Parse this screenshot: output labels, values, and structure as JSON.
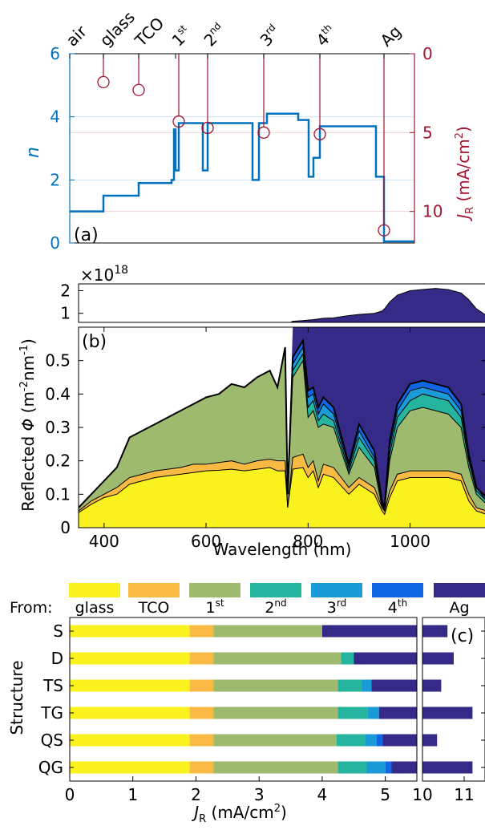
{
  "colors": {
    "blue": "#0072BD",
    "red": "#A2142F",
    "glass": "#F9F21E",
    "TCO": "#F8BA42",
    "first": "#9DBA6E",
    "second": "#25B59E",
    "third": "#1A9BD8",
    "fourth": "#1166E6",
    "Ag": "#352A87"
  },
  "chart_data": [
    {
      "id": "a",
      "type": "line",
      "panel_label": "(a)",
      "ylabel_left": "n",
      "ylabel_right_main": "J",
      "ylabel_right_sub": "R",
      "ylabel_right_unit": " (mA/cm",
      "ylabel_right_sup": "2",
      "ylabel_right_close": ")",
      "ylim_left": [
        0,
        6
      ],
      "yticks_left": [
        "0",
        "2",
        "4",
        "6"
      ],
      "ylim_right": [
        0,
        12
      ],
      "yticks_right": [
        "0",
        "5",
        "10"
      ],
      "top_labels": [
        {
          "main": "air",
          "sup": ""
        },
        {
          "main": "glass",
          "sup": ""
        },
        {
          "main": "TCO",
          "sup": ""
        },
        {
          "main": "1",
          "sup": "st"
        },
        {
          "main": "2",
          "sup": "nd"
        },
        {
          "main": "3",
          "sup": "rd"
        },
        {
          "main": "4",
          "sup": "th"
        },
        {
          "main": "Ag",
          "sup": ""
        }
      ],
      "interfaces_x": [
        0,
        42,
        86,
        132,
        172,
        242,
        312,
        392
      ],
      "refractive_index_profile": [
        [
          0,
          1.0
        ],
        [
          42,
          1.0
        ],
        [
          42,
          1.5
        ],
        [
          86,
          1.5
        ],
        [
          86,
          1.9
        ],
        [
          127,
          1.9
        ],
        [
          127,
          2.0
        ],
        [
          130,
          2.0
        ],
        [
          130,
          3.6
        ],
        [
          132,
          3.6
        ],
        [
          132,
          2.3
        ],
        [
          136,
          2.3
        ],
        [
          136,
          3.8
        ],
        [
          166,
          3.8
        ],
        [
          166,
          2.3
        ],
        [
          172,
          2.3
        ],
        [
          172,
          3.8
        ],
        [
          228,
          3.8
        ],
        [
          228,
          2.0
        ],
        [
          236,
          2.0
        ],
        [
          236,
          3.8
        ],
        [
          246,
          3.8
        ],
        [
          246,
          4.1
        ],
        [
          285,
          4.1
        ],
        [
          285,
          3.9
        ],
        [
          298,
          3.9
        ],
        [
          298,
          2.1
        ],
        [
          304,
          2.1
        ],
        [
          304,
          2.7
        ],
        [
          312,
          2.7
        ],
        [
          312,
          3.7
        ],
        [
          382,
          3.7
        ],
        [
          382,
          2.1
        ],
        [
          392,
          2.1
        ],
        [
          392,
          0.05
        ],
        [
          430,
          0.05
        ]
      ],
      "jr_markers": [
        {
          "x": 42,
          "y": 1.8
        },
        {
          "x": 86,
          "y": 2.3
        },
        {
          "x": 136,
          "y": 4.3
        },
        {
          "x": 172,
          "y": 4.7
        },
        {
          "x": 242,
          "y": 5.0
        },
        {
          "x": 312,
          "y": 5.1
        },
        {
          "x": 392,
          "y": 11.2
        }
      ]
    },
    {
      "id": "b",
      "type": "area",
      "panel_label": "(b)",
      "xlabel": "Wavelength (nm)",
      "ylabel_pre": "Reflected ",
      "ylabel_phi": "Φ",
      "ylabel_unit": " (m",
      "ylabel_sup1": "-2",
      "ylabel_mid": "nm",
      "ylabel_sup2": "-1",
      "ylabel_close": ")",
      "xlim": [
        350,
        1150
      ],
      "xticks": [
        "400",
        "600",
        "800",
        "1000"
      ],
      "ylim": [
        0,
        0.6
      ],
      "yticks": [
        "0",
        "0.1",
        "0.2",
        "0.3",
        "0.4",
        "0.5"
      ],
      "upper_multiplier": "×10",
      "upper_multiplier_exp": "18",
      "upper_ylim": [
        0.6,
        2.3
      ],
      "upper_yticks": [
        "1",
        "2"
      ],
      "wavelengths": [
        350,
        375,
        400,
        425,
        450,
        475,
        500,
        525,
        550,
        575,
        600,
        625,
        650,
        675,
        700,
        725,
        740,
        755,
        760,
        770,
        790,
        800,
        810,
        820,
        830,
        850,
        880,
        900,
        930,
        945,
        950,
        960,
        975,
        1000,
        1025,
        1050,
        1075,
        1100,
        1115,
        1130,
        1150
      ],
      "cumulative_series": [
        {
          "name": "glass",
          "values": [
            0.045,
            0.07,
            0.09,
            0.1,
            0.13,
            0.14,
            0.15,
            0.155,
            0.16,
            0.165,
            0.17,
            0.172,
            0.175,
            0.17,
            0.175,
            0.18,
            0.17,
            0.17,
            0.06,
            0.175,
            0.18,
            0.15,
            0.17,
            0.12,
            0.16,
            0.15,
            0.1,
            0.13,
            0.1,
            0.05,
            0.04,
            0.09,
            0.14,
            0.15,
            0.15,
            0.15,
            0.15,
            0.14,
            0.08,
            0.05,
            0.04
          ]
        },
        {
          "name": "TCO",
          "values": [
            0.05,
            0.08,
            0.1,
            0.12,
            0.15,
            0.16,
            0.17,
            0.175,
            0.18,
            0.19,
            0.19,
            0.195,
            0.2,
            0.19,
            0.2,
            0.205,
            0.2,
            0.2,
            0.06,
            0.21,
            0.22,
            0.18,
            0.2,
            0.14,
            0.19,
            0.18,
            0.12,
            0.15,
            0.12,
            0.06,
            0.05,
            0.11,
            0.16,
            0.17,
            0.17,
            0.17,
            0.17,
            0.16,
            0.1,
            0.06,
            0.05
          ]
        },
        {
          "name": "1st",
          "values": [
            0.06,
            0.1,
            0.14,
            0.18,
            0.27,
            0.29,
            0.31,
            0.33,
            0.35,
            0.37,
            0.39,
            0.4,
            0.43,
            0.42,
            0.45,
            0.47,
            0.42,
            0.54,
            0.1,
            0.45,
            0.5,
            0.33,
            0.35,
            0.3,
            0.31,
            0.3,
            0.16,
            0.24,
            0.18,
            0.06,
            0.05,
            0.2,
            0.3,
            0.35,
            0.36,
            0.35,
            0.34,
            0.3,
            0.18,
            0.1,
            0.07
          ]
        },
        {
          "name": "2nd",
          "values": [
            0.06,
            0.1,
            0.14,
            0.18,
            0.27,
            0.29,
            0.31,
            0.33,
            0.35,
            0.37,
            0.39,
            0.4,
            0.43,
            0.42,
            0.45,
            0.47,
            0.42,
            0.54,
            0.1,
            0.47,
            0.52,
            0.36,
            0.38,
            0.32,
            0.34,
            0.32,
            0.17,
            0.27,
            0.2,
            0.07,
            0.05,
            0.22,
            0.33,
            0.38,
            0.4,
            0.39,
            0.38,
            0.33,
            0.2,
            0.11,
            0.08
          ]
        },
        {
          "name": "3rd",
          "values": [
            0.06,
            0.1,
            0.14,
            0.18,
            0.27,
            0.29,
            0.31,
            0.33,
            0.35,
            0.37,
            0.39,
            0.4,
            0.43,
            0.42,
            0.45,
            0.47,
            0.42,
            0.54,
            0.1,
            0.49,
            0.54,
            0.39,
            0.4,
            0.34,
            0.37,
            0.34,
            0.18,
            0.29,
            0.21,
            0.07,
            0.05,
            0.24,
            0.35,
            0.41,
            0.42,
            0.41,
            0.4,
            0.35,
            0.21,
            0.12,
            0.08
          ]
        },
        {
          "name": "4th",
          "values": [
            0.06,
            0.1,
            0.14,
            0.18,
            0.27,
            0.29,
            0.31,
            0.33,
            0.35,
            0.37,
            0.39,
            0.4,
            0.43,
            0.42,
            0.45,
            0.47,
            0.42,
            0.54,
            0.1,
            0.51,
            0.56,
            0.41,
            0.42,
            0.36,
            0.39,
            0.36,
            0.19,
            0.31,
            0.23,
            0.08,
            0.06,
            0.26,
            0.37,
            0.43,
            0.44,
            0.43,
            0.42,
            0.37,
            0.22,
            0.12,
            0.09
          ]
        },
        {
          "name": "Ag",
          "values": [
            0.06,
            0.1,
            0.14,
            0.18,
            0.27,
            0.29,
            0.31,
            0.33,
            0.35,
            0.37,
            0.39,
            0.4,
            0.43,
            0.42,
            0.45,
            0.47,
            0.42,
            0.54,
            0.1,
            0.6,
            0.6,
            0.6,
            0.6,
            0.6,
            0.6,
            0.6,
            0.6,
            0.6,
            0.6,
            0.6,
            0.6,
            0.6,
            0.6,
            0.6,
            0.6,
            0.6,
            0.6,
            0.6,
            0.6,
            0.6,
            0.6
          ]
        }
      ],
      "upper_Ag_values": [
        0,
        0,
        0,
        0,
        0,
        0,
        0,
        0,
        0,
        0,
        0,
        0,
        0,
        0,
        0,
        0,
        0,
        0,
        0,
        0.65,
        0.68,
        0.7,
        0.72,
        0.75,
        0.78,
        0.8,
        0.9,
        0.95,
        1.0,
        1.1,
        1.2,
        1.5,
        1.8,
        2.0,
        2.05,
        2.1,
        2.05,
        1.9,
        1.6,
        1.2,
        0.9
      ]
    },
    {
      "id": "c",
      "type": "bar",
      "panel_label": "(c)",
      "legend_prefix": "From:",
      "legend": [
        {
          "main": "glass",
          "sup": ""
        },
        {
          "main": "TCO",
          "sup": ""
        },
        {
          "main": "1",
          "sup": "st"
        },
        {
          "main": "2",
          "sup": "nd"
        },
        {
          "main": "3",
          "sup": "rd"
        },
        {
          "main": "4",
          "sup": "th"
        },
        {
          "main": "Ag",
          "sup": ""
        }
      ],
      "ylabel": "Structure",
      "xlabel_main": "J",
      "xlabel_sub": "R",
      "xlabel_unit": " (mA/cm",
      "xlabel_sup": "2",
      "xlabel_close": ")",
      "xlim_left": [
        0,
        5.5
      ],
      "xticks_left": [
        "0",
        "1",
        "2",
        "3",
        "4",
        "5"
      ],
      "xlim_right": [
        10,
        11.5
      ],
      "xticks_right": [
        "10",
        "11"
      ],
      "categories": [
        "S",
        "D",
        "TS",
        "TG",
        "QS",
        "QG"
      ],
      "series": [
        {
          "name": "glass",
          "values": [
            1.9,
            1.9,
            1.9,
            1.9,
            1.9,
            1.9
          ]
        },
        {
          "name": "TCO",
          "values": [
            0.38,
            0.38,
            0.38,
            0.38,
            0.38,
            0.38
          ]
        },
        {
          "name": "1st",
          "values": [
            1.72,
            2.02,
            1.97,
            1.97,
            1.95,
            1.97
          ]
        },
        {
          "name": "2nd",
          "values": [
            0,
            0.2,
            0.38,
            0.47,
            0.45,
            0.45
          ]
        },
        {
          "name": "3rd",
          "values": [
            0,
            0,
            0.15,
            0.18,
            0.18,
            0.3
          ]
        },
        {
          "name": "4th",
          "values": [
            0,
            0,
            0,
            0,
            0.1,
            0.1
          ]
        },
        {
          "name": "Ag",
          "values": [
            10.6,
            10.75,
            10.45,
            11.2,
            10.35,
            11.2
          ]
        }
      ]
    }
  ]
}
